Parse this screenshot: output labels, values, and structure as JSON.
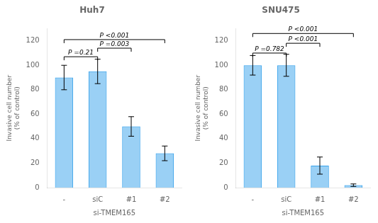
{
  "chart_data": [
    {
      "type": "bar",
      "title": "Huh7",
      "categories": [
        "-",
        "siC",
        "#1",
        "#2"
      ],
      "values": [
        90,
        95,
        50,
        28
      ],
      "errors": [
        10,
        10,
        8,
        6
      ],
      "xlabel": "si-TMEM165",
      "ylabel": "Invasive cell number\n(% of control)",
      "ylim": [
        0,
        130
      ],
      "yticks": [
        0,
        20,
        40,
        60,
        80,
        100,
        120
      ],
      "grid": false,
      "annotations": [
        {
          "x1": "-",
          "x2": "siC",
          "y": 107,
          "text": "P =0.21"
        },
        {
          "x1": "siC",
          "x2": "#1",
          "y": 114,
          "text": "P =0.003"
        },
        {
          "x1": "-",
          "x2": "#2",
          "y": 121,
          "text": "P <0.001"
        }
      ]
    },
    {
      "type": "bar",
      "title": "SNU475",
      "categories": [
        "-",
        "siC",
        "#1",
        "#2"
      ],
      "values": [
        100,
        100,
        18,
        2
      ],
      "errors": [
        8,
        9,
        7,
        1
      ],
      "xlabel": "si-TMEM165",
      "ylabel": "Invasive cell number\n(% of control)",
      "ylim": [
        0,
        130
      ],
      "yticks": [
        0,
        20,
        40,
        60,
        80,
        100,
        120
      ],
      "grid": false,
      "annotations": [
        {
          "x1": "-",
          "x2": "siC",
          "y": 110,
          "text": "P =0.782"
        },
        {
          "x1": "siC",
          "x2": "#1",
          "y": 118,
          "text": "P <0.001"
        },
        {
          "x1": "-",
          "x2": "#2",
          "y": 126,
          "text": "P <0.001"
        }
      ]
    }
  ]
}
